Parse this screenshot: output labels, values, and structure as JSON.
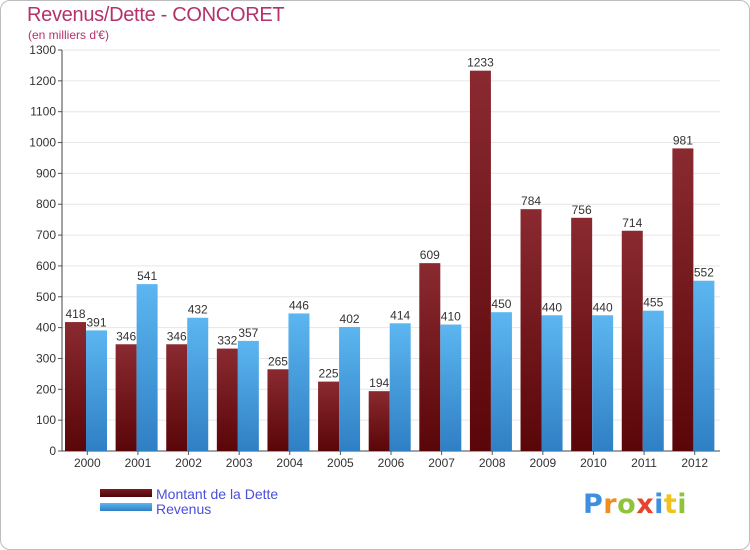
{
  "title": "Revenus/Dette - CONCORET",
  "subtitle": "(en milliers d'€)",
  "logo": "Proxiti",
  "colors": {
    "dette": "#6b0d12",
    "revenus": "#3f9fe3",
    "title": "#b5316b",
    "legend_text": "#4a4fd8"
  },
  "chart_data": {
    "type": "bar",
    "title": "Revenus/Dette - CONCORET",
    "subtitle": "(en milliers d'€)",
    "categories": [
      "2000",
      "2001",
      "2002",
      "2003",
      "2004",
      "2005",
      "2006",
      "2007",
      "2008",
      "2009",
      "2010",
      "2011",
      "2012"
    ],
    "series": [
      {
        "name": "Montant de la Dette",
        "values": [
          418,
          346,
          346,
          332,
          265,
          225,
          194,
          609,
          1233,
          784,
          756,
          714,
          981
        ]
      },
      {
        "name": "Revenus",
        "values": [
          391,
          541,
          432,
          357,
          446,
          402,
          414,
          410,
          450,
          440,
          440,
          455,
          552
        ]
      }
    ],
    "ylim": [
      0,
      1300
    ],
    "yticks": [
      0,
      100,
      200,
      300,
      400,
      500,
      600,
      700,
      800,
      900,
      1000,
      1100,
      1200,
      1300
    ],
    "grid": true,
    "legend": "bottom-left"
  }
}
